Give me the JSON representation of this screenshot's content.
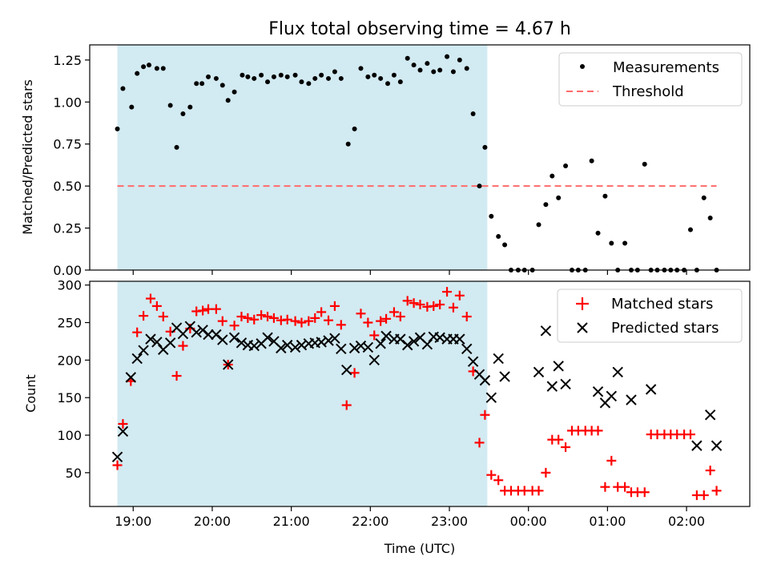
{
  "title": "Flux total observing time = 4.67 h",
  "colors": {
    "shade": "#add8e6",
    "threshold": "#ff6b6b",
    "matched": "#ff0000",
    "predicted": "#000000",
    "measurement": "#000000"
  },
  "chart_data": [
    {
      "type": "scatter",
      "panel": "top",
      "ylabel": "Matched/Predicted stars",
      "xlabel": "",
      "xlim_hours": [
        18.45,
        26.8
      ],
      "ylim": [
        0,
        1.34
      ],
      "yticks": [
        "0.00",
        "0.25",
        "0.50",
        "0.75",
        "1.00",
        "1.25"
      ],
      "shaded_span_hours": [
        18.8,
        23.48
      ],
      "threshold": 0.5,
      "legend": [
        "Measurements",
        "Threshold"
      ],
      "legend_position": "upper right",
      "series": [
        {
          "name": "Measurements",
          "marker": "dot",
          "x_hours": [
            18.8,
            18.87,
            18.98,
            19.05,
            19.13,
            19.2,
            19.3,
            19.38,
            19.47,
            19.55,
            19.63,
            19.72,
            19.8,
            19.87,
            19.95,
            20.05,
            20.13,
            20.2,
            20.28,
            20.38,
            20.45,
            20.53,
            20.62,
            20.7,
            20.78,
            20.87,
            20.95,
            21.05,
            21.13,
            21.22,
            21.3,
            21.38,
            21.47,
            21.55,
            21.63,
            21.72,
            21.8,
            21.88,
            21.97,
            22.05,
            22.13,
            22.22,
            22.3,
            22.38,
            22.47,
            22.55,
            22.63,
            22.72,
            22.8,
            22.88,
            22.97,
            23.05,
            23.13,
            23.22,
            23.3,
            23.38,
            23.45,
            23.53,
            23.62,
            23.7,
            23.78,
            23.87,
            23.95,
            24.05,
            24.13,
            24.22,
            24.3,
            24.38,
            24.47,
            24.55,
            24.63,
            24.72,
            24.8,
            24.88,
            24.97,
            25.05,
            25.13,
            25.22,
            25.3,
            25.38,
            25.47,
            25.55,
            25.63,
            25.72,
            25.8,
            25.88,
            25.97,
            26.05,
            26.13,
            26.22,
            26.3,
            26.38
          ],
          "y": [
            0.84,
            1.08,
            0.97,
            1.17,
            1.21,
            1.22,
            1.2,
            1.2,
            0.98,
            0.73,
            0.93,
            0.97,
            1.11,
            1.11,
            1.15,
            1.14,
            1.1,
            1.01,
            1.06,
            1.16,
            1.15,
            1.14,
            1.16,
            1.12,
            1.15,
            1.16,
            1.15,
            1.16,
            1.12,
            1.11,
            1.14,
            1.16,
            1.14,
            1.18,
            1.14,
            0.75,
            0.84,
            1.2,
            1.15,
            1.16,
            1.14,
            1.11,
            1.16,
            1.12,
            1.26,
            1.22,
            1.19,
            1.23,
            1.18,
            1.19,
            1.27,
            1.18,
            1.25,
            1.2,
            0.93,
            0.5,
            0.73,
            0.32,
            0.2,
            0.15,
            0.0,
            0.0,
            0.0,
            0.0,
            0.27,
            0.39,
            0.56,
            0.43,
            0.62,
            0.0,
            0.0,
            0.0,
            0.65,
            0.22,
            0.44,
            0.16,
            0.0,
            0.16,
            0.0,
            0.0,
            0.63,
            0.0,
            0.0,
            0.0,
            0.0,
            0.0,
            0.0,
            0.24,
            0.0,
            0.43,
            0.31,
            0.0
          ]
        },
        {
          "name": "Threshold",
          "line_style": "dashed",
          "x_hours": [
            18.8,
            26.38
          ],
          "y": [
            0.5,
            0.5
          ]
        }
      ]
    },
    {
      "type": "scatter",
      "panel": "bottom",
      "xlabel": "Time (UTC)",
      "ylabel": "Count",
      "xlim_hours": [
        18.45,
        26.8
      ],
      "ylim": [
        5,
        305
      ],
      "yticks": [
        "50",
        "100",
        "150",
        "200",
        "250",
        "300"
      ],
      "xticks": [
        "19:00",
        "20:00",
        "21:00",
        "22:00",
        "23:00",
        "00:00",
        "01:00",
        "02:00"
      ],
      "shaded_span_hours": [
        18.8,
        23.48
      ],
      "legend": [
        "Matched stars",
        "Predicted stars"
      ],
      "legend_position": "upper right",
      "series": [
        {
          "name": "Matched stars",
          "marker": "plus",
          "points": [
            [
              18.8,
              60
            ],
            [
              18.87,
              115
            ],
            [
              18.97,
              172
            ],
            [
              19.05,
              237
            ],
            [
              19.13,
              259
            ],
            [
              19.22,
              282
            ],
            [
              19.3,
              272
            ],
            [
              19.38,
              258
            ],
            [
              19.47,
              238
            ],
            [
              19.55,
              179
            ],
            [
              19.63,
              219
            ],
            [
              19.72,
              242
            ],
            [
              19.8,
              265
            ],
            [
              19.88,
              266
            ],
            [
              19.95,
              268
            ],
            [
              20.05,
              268
            ],
            [
              20.13,
              252
            ],
            [
              20.2,
              194
            ],
            [
              20.28,
              246
            ],
            [
              20.37,
              258
            ],
            [
              20.45,
              256
            ],
            [
              20.53,
              254
            ],
            [
              20.62,
              260
            ],
            [
              20.7,
              258
            ],
            [
              20.78,
              256
            ],
            [
              20.87,
              253
            ],
            [
              20.95,
              254
            ],
            [
              21.05,
              252
            ],
            [
              21.13,
              250
            ],
            [
              21.22,
              252
            ],
            [
              21.3,
              256
            ],
            [
              21.38,
              264
            ],
            [
              21.47,
              253
            ],
            [
              21.55,
              272
            ],
            [
              21.63,
              247
            ],
            [
              21.7,
              140
            ],
            [
              21.8,
              183
            ],
            [
              21.88,
              262
            ],
            [
              21.97,
              250
            ],
            [
              22.05,
              233
            ],
            [
              22.13,
              252
            ],
            [
              22.2,
              255
            ],
            [
              22.3,
              264
            ],
            [
              22.38,
              258
            ],
            [
              22.47,
              279
            ],
            [
              22.55,
              276
            ],
            [
              22.63,
              274
            ],
            [
              22.72,
              271
            ],
            [
              22.8,
              272
            ],
            [
              22.88,
              274
            ],
            [
              22.97,
              291
            ],
            [
              23.05,
              270
            ],
            [
              23.13,
              286
            ],
            [
              23.22,
              258
            ],
            [
              23.3,
              185
            ],
            [
              23.38,
              90
            ],
            [
              23.45,
              127
            ],
            [
              23.53,
              47
            ],
            [
              23.62,
              40
            ],
            [
              23.7,
              26
            ],
            [
              23.78,
              26
            ],
            [
              23.87,
              26
            ],
            [
              23.95,
              26
            ],
            [
              24.05,
              26
            ],
            [
              24.13,
              26
            ],
            [
              24.22,
              50
            ],
            [
              24.3,
              94
            ],
            [
              24.38,
              94
            ],
            [
              24.47,
              84
            ],
            [
              24.55,
              106
            ],
            [
              24.63,
              106
            ],
            [
              24.72,
              106
            ],
            [
              24.8,
              106
            ],
            [
              24.88,
              106
            ],
            [
              24.97,
              31
            ],
            [
              25.05,
              66
            ],
            [
              25.13,
              31
            ],
            [
              25.22,
              31
            ],
            [
              25.3,
              24
            ],
            [
              25.38,
              24
            ],
            [
              25.47,
              24
            ],
            [
              25.55,
              101
            ],
            [
              25.63,
              101
            ],
            [
              25.72,
              101
            ],
            [
              25.8,
              101
            ],
            [
              25.88,
              101
            ],
            [
              25.97,
              101
            ],
            [
              26.05,
              101
            ],
            [
              26.13,
              20
            ],
            [
              26.22,
              20
            ],
            [
              26.3,
              53
            ],
            [
              26.38,
              26
            ]
          ]
        },
        {
          "name": "Predicted stars",
          "marker": "x",
          "points": [
            [
              18.8,
              71
            ],
            [
              18.87,
              105
            ],
            [
              18.97,
              177
            ],
            [
              19.05,
              202
            ],
            [
              19.13,
              213
            ],
            [
              19.22,
              228
            ],
            [
              19.3,
              224
            ],
            [
              19.38,
              214
            ],
            [
              19.47,
              223
            ],
            [
              19.55,
              243
            ],
            [
              19.63,
              235
            ],
            [
              19.72,
              245
            ],
            [
              19.8,
              237
            ],
            [
              19.88,
              240
            ],
            [
              19.95,
              234
            ],
            [
              20.05,
              234
            ],
            [
              20.13,
              227
            ],
            [
              20.2,
              194
            ],
            [
              20.28,
              230
            ],
            [
              20.37,
              223
            ],
            [
              20.45,
              220
            ],
            [
              20.53,
              219
            ],
            [
              20.62,
              222
            ],
            [
              20.7,
              230
            ],
            [
              20.78,
              225
            ],
            [
              20.87,
              216
            ],
            [
              20.95,
              220
            ],
            [
              21.05,
              217
            ],
            [
              21.13,
              220
            ],
            [
              21.22,
              222
            ],
            [
              21.3,
              223
            ],
            [
              21.38,
              224
            ],
            [
              21.47,
              226
            ],
            [
              21.55,
              229
            ],
            [
              21.63,
              215
            ],
            [
              21.7,
              187
            ],
            [
              21.8,
              216
            ],
            [
              21.88,
              219
            ],
            [
              21.97,
              217
            ],
            [
              22.05,
              200
            ],
            [
              22.13,
              222
            ],
            [
              22.2,
              232
            ],
            [
              22.3,
              228
            ],
            [
              22.38,
              228
            ],
            [
              22.47,
              220
            ],
            [
              22.55,
              225
            ],
            [
              22.63,
              230
            ],
            [
              22.72,
              221
            ],
            [
              22.8,
              231
            ],
            [
              22.88,
              230
            ],
            [
              22.97,
              228
            ],
            [
              23.05,
              228
            ],
            [
              23.13,
              228
            ],
            [
              23.22,
              215
            ],
            [
              23.3,
              198
            ],
            [
              23.38,
              181
            ],
            [
              23.45,
              173
            ],
            [
              23.53,
              150
            ],
            [
              23.62,
              202
            ],
            [
              23.7,
              178
            ],
            [
              24.13,
              184
            ],
            [
              24.22,
              239
            ],
            [
              24.3,
              165
            ],
            [
              24.38,
              192
            ],
            [
              24.47,
              168
            ],
            [
              24.88,
              158
            ],
            [
              24.97,
              143
            ],
            [
              25.05,
              152
            ],
            [
              25.13,
              184
            ],
            [
              25.3,
              147
            ],
            [
              25.55,
              161
            ],
            [
              26.13,
              86
            ],
            [
              26.3,
              127
            ],
            [
              26.38,
              86
            ]
          ]
        }
      ]
    }
  ]
}
